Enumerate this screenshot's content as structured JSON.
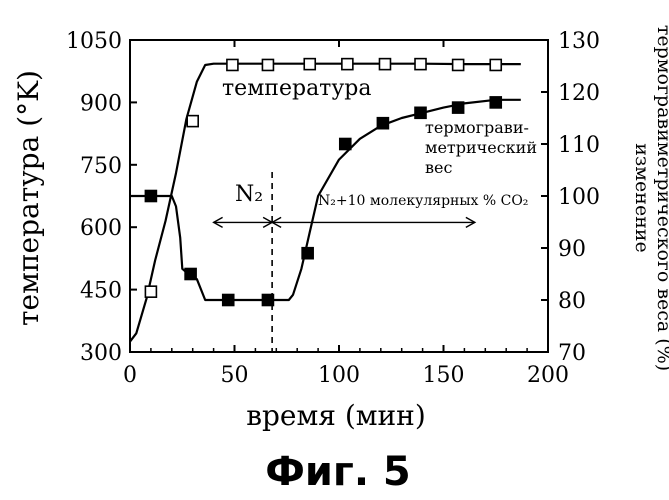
{
  "chart_data": {
    "type": "line",
    "xlabel": "время (мин)",
    "ylabel": "температура (°K)",
    "y2label_line1": "изменение",
    "y2label_line2": "термогравиметрического веса (%)",
    "caption": "Фиг. 5",
    "xlim": [
      0,
      200
    ],
    "ylim": [
      300,
      1050
    ],
    "y2lim": [
      70,
      130
    ],
    "x_ticks": [
      "0",
      "50",
      "100",
      "150",
      "200"
    ],
    "y_ticks": [
      "300",
      "450",
      "600",
      "750",
      "900",
      "1050"
    ],
    "y2_ticks": [
      "70",
      "80",
      "90",
      "100",
      "110",
      "120",
      "130"
    ],
    "grid": false,
    "series": [
      {
        "name": "температура",
        "axis": "left",
        "marker": "open-square",
        "x": [
          0,
          3,
          8,
          12,
          17,
          22,
          27,
          32,
          36,
          40,
          60,
          80,
          100,
          120,
          140,
          160,
          187
        ],
        "y": [
          325,
          345,
          430,
          520,
          615,
          730,
          860,
          950,
          990,
          993,
          993,
          993,
          993,
          993,
          993,
          992,
          992
        ],
        "markers_x": [
          10,
          30,
          49,
          66,
          86,
          104,
          122,
          139,
          157,
          175
        ],
        "markers_y": [
          445,
          855,
          990,
          990,
          992,
          992,
          992,
          992,
          990,
          990
        ]
      },
      {
        "name": "термогравиметрический вес",
        "axis": "right",
        "marker": "filled-square",
        "x": [
          0,
          20,
          22,
          24,
          25,
          28,
          32,
          36,
          40,
          60,
          76,
          78,
          82,
          86,
          90,
          100,
          110,
          120,
          130,
          140,
          150,
          160,
          175,
          187
        ],
        "y": [
          100,
          100,
          98,
          92,
          86,
          85,
          84,
          80,
          80,
          80,
          80,
          81,
          86,
          93,
          100,
          107,
          111,
          113.5,
          115,
          116,
          117,
          117.8,
          118.5,
          118.5
        ],
        "markers_x": [
          10,
          29,
          47,
          66,
          85,
          103,
          121,
          139,
          157,
          175
        ],
        "markers_y": [
          100,
          85,
          80,
          80,
          89,
          110,
          114,
          116,
          117,
          118
        ]
      }
    ],
    "annotations": {
      "temp_label": "температура",
      "tg_label_1": "термограви-",
      "tg_label_2": "метрический",
      "tg_label_3": "вес",
      "n2_label": "N₂",
      "n2co2_label": "N₂+10 молекулярных % CO₂",
      "n2_arrow_x": [
        40,
        68
      ],
      "n2co2_arrow_x": [
        68,
        165
      ],
      "arrow_y2": 98,
      "dashed_line_x": 68
    }
  }
}
